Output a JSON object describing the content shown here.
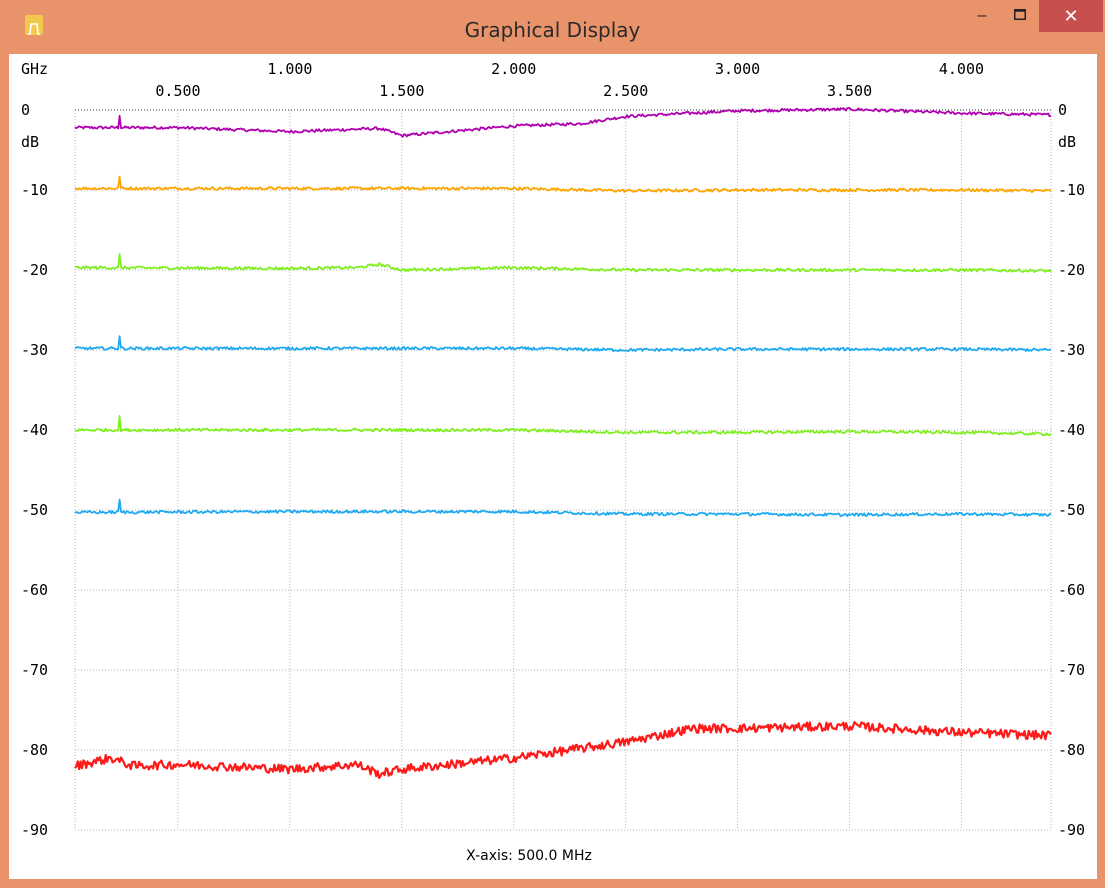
{
  "window": {
    "title": "Graphical Display",
    "controls": {
      "minimize": "–",
      "maximize": "□",
      "close": "✕"
    },
    "icon": "filter-passband-icon",
    "frame_color": "#E8936A",
    "close_color": "#C7504F"
  },
  "chart_data": {
    "type": "line",
    "x_unit": "GHz",
    "y_unit": "dB",
    "xlim": [
      0.04,
      4.4
    ],
    "ylim": [
      -90,
      0
    ],
    "x_ticks_top": [
      "1.000",
      "2.000",
      "3.000",
      "4.000"
    ],
    "x_ticks_top_values": [
      1.0,
      2.0,
      3.0,
      4.0
    ],
    "x_ticks_bottom": [
      "0.500",
      "1.500",
      "2.500",
      "3.500"
    ],
    "x_ticks_bottom_values": [
      0.5,
      1.5,
      2.5,
      3.5
    ],
    "y_ticks": [
      "0",
      "-10",
      "-20",
      "-30",
      "-40",
      "-50",
      "-60",
      "-70",
      "-80",
      "-90"
    ],
    "y_tick_values": [
      0,
      -10,
      -20,
      -30,
      -40,
      -50,
      -60,
      -70,
      -80,
      -90
    ],
    "grid": true,
    "footer": "X-axis: 500.0 MHz",
    "series": [
      {
        "color": "#B000B0",
        "x": [
          0.04,
          0.5,
          1.0,
          1.4,
          1.5,
          2.0,
          2.3,
          2.5,
          3.0,
          3.5,
          4.0,
          4.4
        ],
        "y": [
          -2.2,
          -2.2,
          -2.7,
          -2.3,
          -3.2,
          -2.0,
          -1.7,
          -0.8,
          -0.1,
          0.1,
          -0.4,
          -0.6
        ]
      },
      {
        "color": "#FFA500",
        "x": [
          0.04,
          1.0,
          1.5,
          2.0,
          2.5,
          3.0,
          3.5,
          4.0,
          4.4
        ],
        "y": [
          -9.8,
          -9.8,
          -9.8,
          -9.8,
          -10.1,
          -10.0,
          -10.0,
          -10.0,
          -10.1
        ]
      },
      {
        "color": "#7FEF1F",
        "x": [
          0.04,
          1.0,
          1.3,
          1.4,
          1.5,
          2.0,
          2.5,
          3.0,
          3.5,
          4.0,
          4.4
        ],
        "y": [
          -19.7,
          -19.8,
          -19.7,
          -19.3,
          -20.0,
          -19.7,
          -20.0,
          -20.0,
          -20.0,
          -20.0,
          -20.1
        ]
      },
      {
        "color": "#1EAAF1",
        "x": [
          0.04,
          1.0,
          1.5,
          2.0,
          2.5,
          3.0,
          3.5,
          4.0,
          4.4
        ],
        "y": [
          -29.8,
          -29.8,
          -29.8,
          -29.8,
          -30.0,
          -29.9,
          -29.9,
          -29.9,
          -30.0
        ]
      },
      {
        "color": "#7FEF1F",
        "x": [
          0.04,
          1.0,
          1.5,
          2.0,
          2.5,
          3.0,
          3.5,
          4.0,
          4.4
        ],
        "y": [
          -40.0,
          -40.0,
          -40.0,
          -40.0,
          -40.3,
          -40.3,
          -40.2,
          -40.3,
          -40.5
        ]
      },
      {
        "color": "#1EAAF1",
        "x": [
          0.04,
          1.0,
          1.5,
          2.0,
          2.5,
          3.0,
          3.5,
          4.0,
          4.4
        ],
        "y": [
          -50.3,
          -50.2,
          -50.2,
          -50.2,
          -50.5,
          -50.5,
          -50.6,
          -50.5,
          -50.6
        ]
      },
      {
        "color": "#FF1A1A",
        "x": [
          0.04,
          0.2,
          0.3,
          0.5,
          1.0,
          1.3,
          1.4,
          1.5,
          2.0,
          2.5,
          2.8,
          3.0,
          3.5,
          4.0,
          4.4
        ],
        "y": [
          -82.0,
          -81.0,
          -82.0,
          -81.8,
          -82.4,
          -81.8,
          -83.0,
          -82.4,
          -81.0,
          -79.0,
          -77.3,
          -77.3,
          -77.0,
          -77.8,
          -78.2
        ]
      }
    ]
  }
}
